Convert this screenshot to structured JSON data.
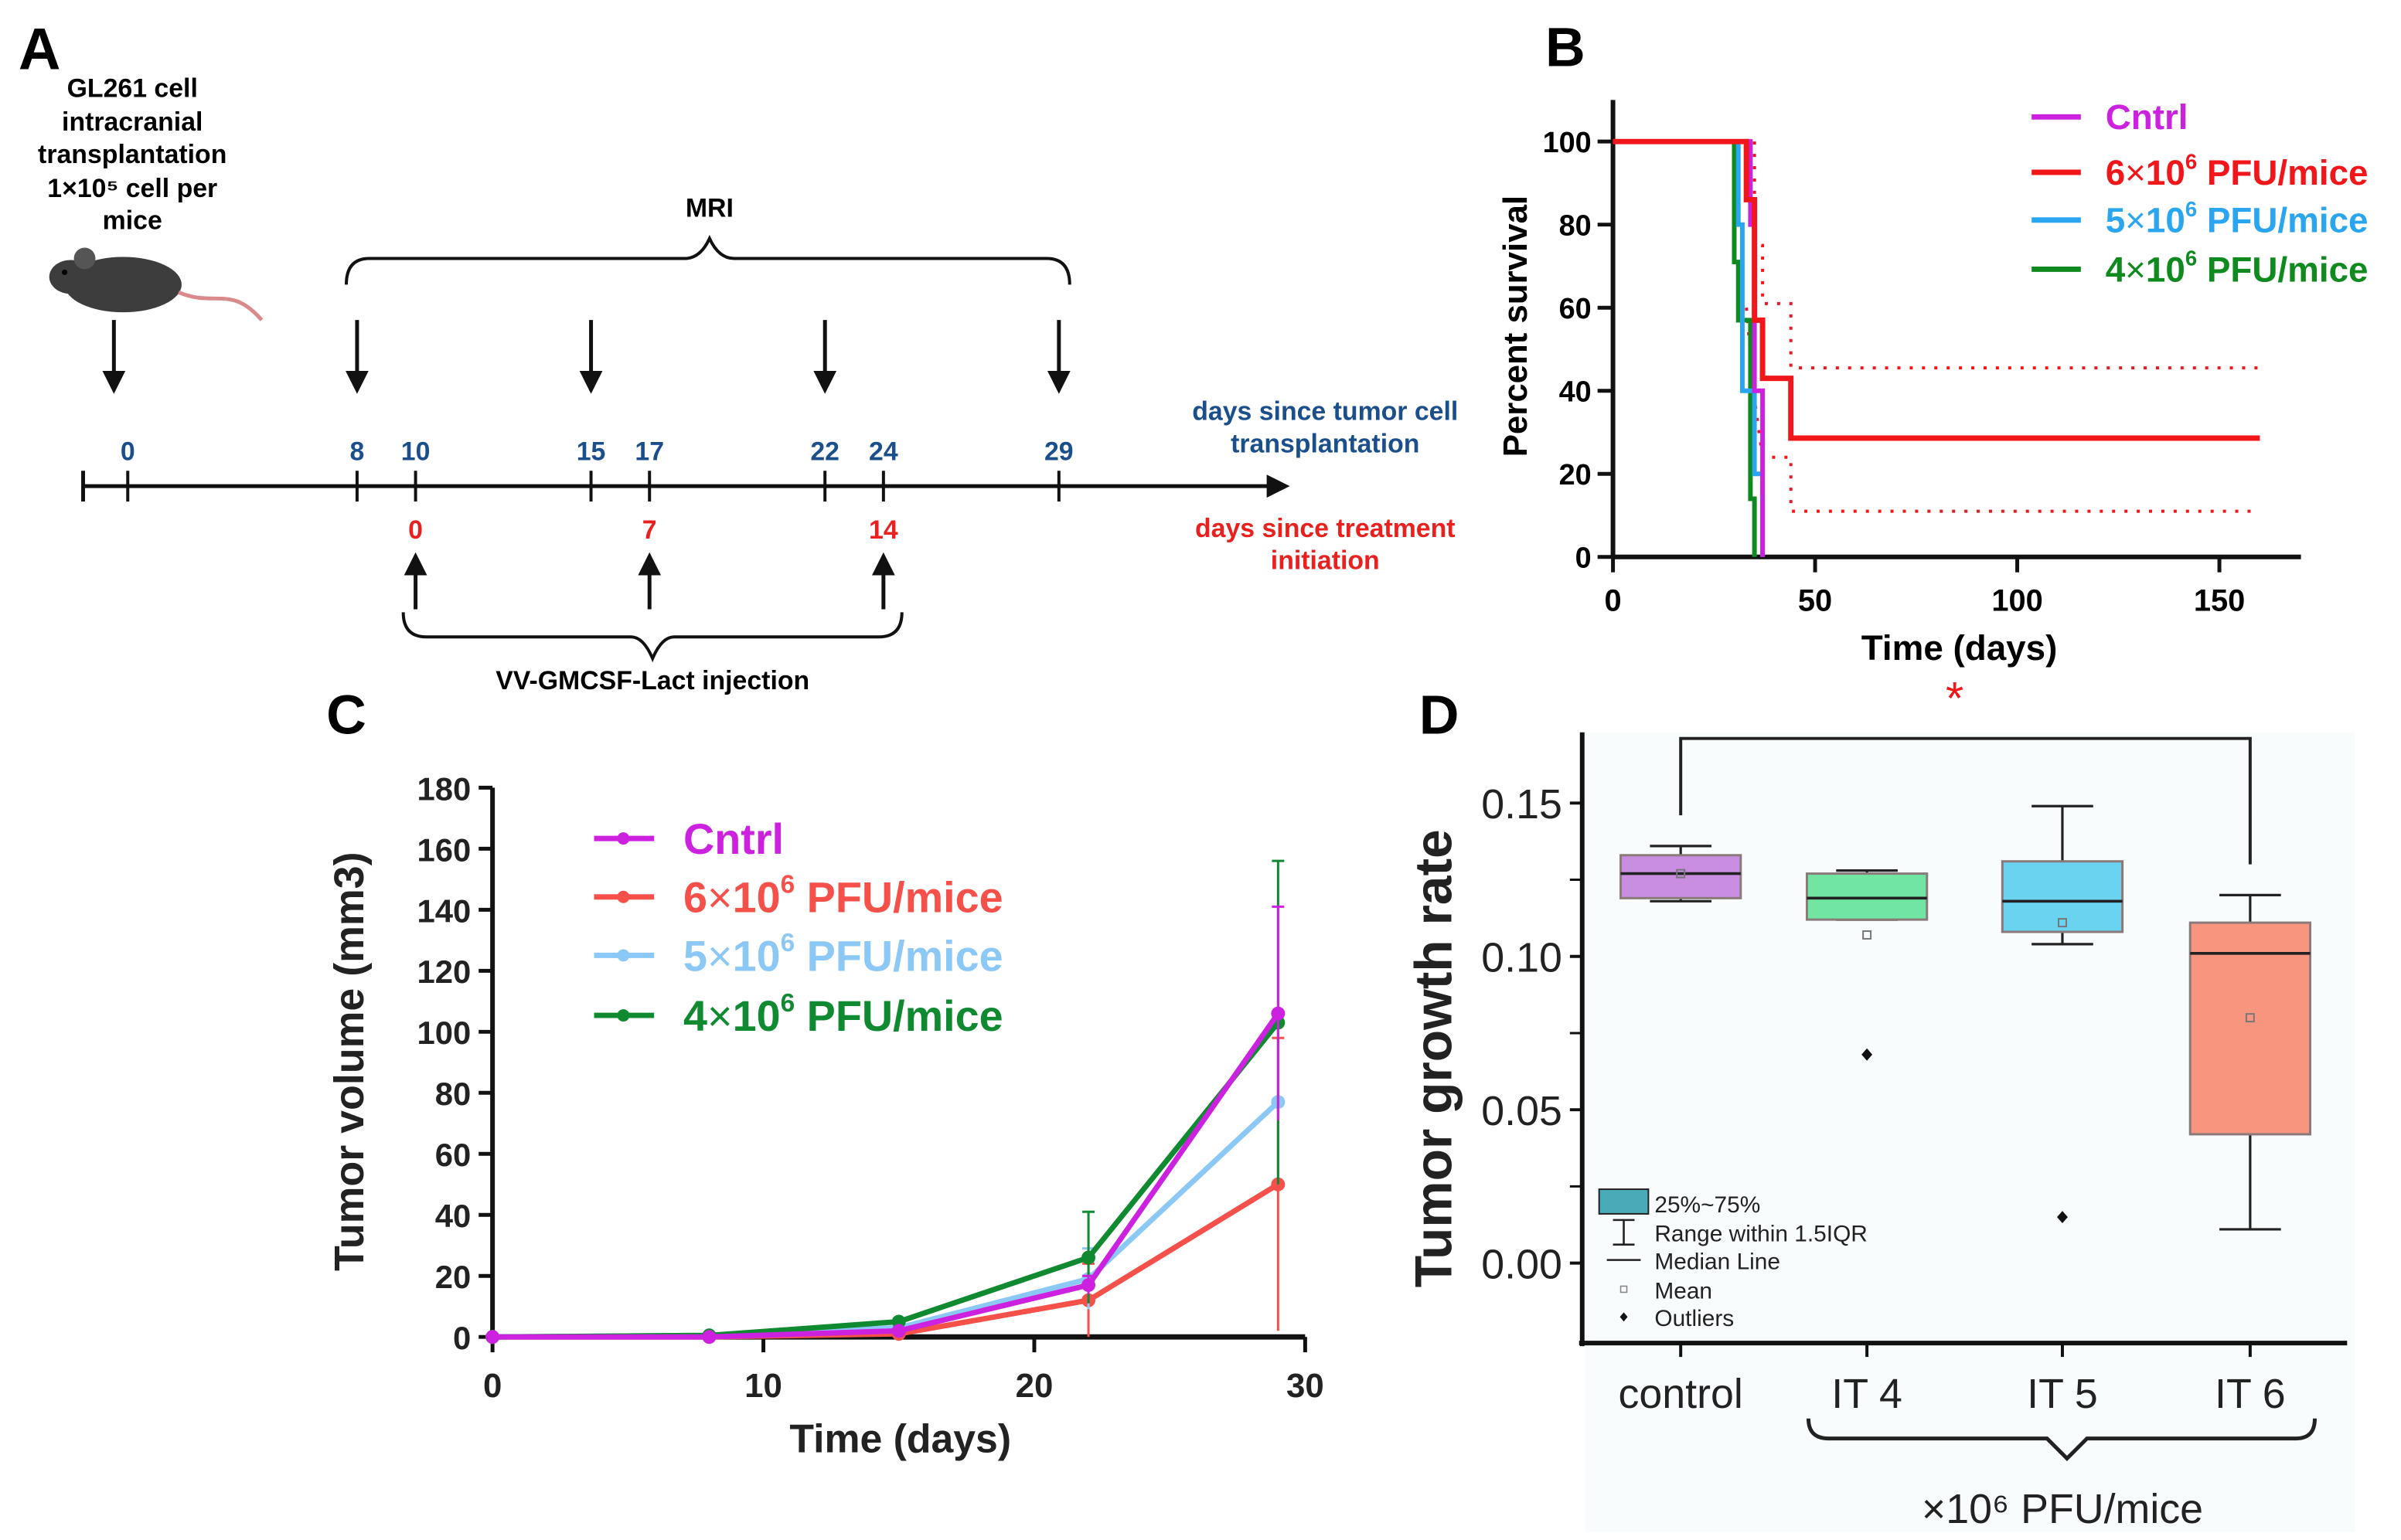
{
  "panels": {
    "a": "A",
    "b": "B",
    "c": "C",
    "d": "D"
  },
  "timeline": {
    "intro_lines": [
      "GL261 cell",
      "intracranial",
      "transplantation",
      "1×10⁵ cell per",
      "mice"
    ],
    "mri_label": "MRI",
    "injection_label": "VV-GMCSF-Lact injection",
    "tumor_days": [
      "0",
      "8",
      "10",
      "15",
      "17",
      "22",
      "24",
      "29"
    ],
    "treatment_days": [
      "0",
      "7",
      "14"
    ],
    "tumor_days_label": [
      "days since tumor cell",
      "transplantation"
    ],
    "treatment_days_label": [
      "days since treatment",
      "initiation"
    ],
    "colors": {
      "tumor": "#1b4f8c",
      "treatment": "#e8201e"
    }
  },
  "chart_data": [
    {
      "id": "B",
      "type": "line",
      "title": "",
      "xlabel": "Time (days)",
      "ylabel": "Percent survival",
      "xlim": [
        0,
        170
      ],
      "ylim": [
        0,
        110
      ],
      "xticks": [
        0,
        50,
        100,
        150
      ],
      "yticks": [
        0,
        20,
        40,
        60,
        80,
        100
      ],
      "annotation": "*",
      "legend_position": "top-right",
      "series": [
        {
          "name": "Cntrl",
          "coef": "",
          "exp": "",
          "unit": "Cntrl",
          "color": "#cc22e0",
          "steps": [
            [
              0,
              100
            ],
            [
              34,
              100
            ],
            [
              34,
              80
            ],
            [
              35,
              80
            ],
            [
              35,
              40
            ],
            [
              37,
              40
            ],
            [
              37,
              0
            ]
          ]
        },
        {
          "name": "6×10^6 PFU/mice",
          "coef": "6",
          "exp": "6",
          "unit": "PFU/mice",
          "color": "#f0161a",
          "steps": [
            [
              0,
              100
            ],
            [
              33,
              100
            ],
            [
              33,
              86
            ],
            [
              35,
              86
            ],
            [
              35,
              57
            ],
            [
              37,
              57
            ],
            [
              37,
              43
            ],
            [
              44,
              43
            ],
            [
              44,
              28.6
            ],
            [
              160,
              28.6
            ]
          ],
          "ci_upper": [
            [
              35,
              100
            ],
            [
              35,
              75
            ],
            [
              37,
              75
            ],
            [
              37,
              61
            ],
            [
              44,
              61
            ],
            [
              44,
              45.5
            ],
            [
              160,
              45.5
            ]
          ],
          "ci_lower": [
            [
              33,
              60
            ],
            [
              35,
              38
            ],
            [
              37,
              24
            ],
            [
              44,
              24
            ],
            [
              44,
              11
            ],
            [
              160,
              11
            ]
          ]
        },
        {
          "name": "5×10^6 PFU/mice",
          "coef": "5",
          "exp": "6",
          "unit": "PFU/mice",
          "color": "#2aa6f0",
          "steps": [
            [
              0,
              100
            ],
            [
              31,
              100
            ],
            [
              31,
              80
            ],
            [
              32,
              80
            ],
            [
              32,
              40
            ],
            [
              35,
              40
            ],
            [
              35,
              20
            ],
            [
              37,
              20
            ],
            [
              37,
              0
            ]
          ]
        },
        {
          "name": "4×10^6 PFU/mice",
          "coef": "4",
          "exp": "6",
          "unit": "PFU/mice",
          "color": "#0f8a1e",
          "steps": [
            [
              0,
              100
            ],
            [
              30,
              100
            ],
            [
              30,
              71
            ],
            [
              31,
              71
            ],
            [
              31,
              57
            ],
            [
              34,
              57
            ],
            [
              34,
              14
            ],
            [
              35,
              14
            ],
            [
              35,
              0
            ]
          ]
        }
      ]
    },
    {
      "id": "C",
      "type": "line",
      "xlabel": "Time (days)",
      "ylabel": "Tumor volume (mm3)",
      "xlim": [
        0,
        30
      ],
      "ylim": [
        0,
        180
      ],
      "xticks": [
        0,
        10,
        20,
        30
      ],
      "yticks": [
        0,
        20,
        40,
        60,
        80,
        100,
        120,
        140,
        160,
        180
      ],
      "legend_position": "top-left",
      "x": [
        0,
        8,
        15,
        22,
        29
      ],
      "series": [
        {
          "name": "Cntrl",
          "coef": "",
          "exp": "",
          "unit": "Cntrl",
          "color": "#cc22e0",
          "values": [
            0,
            0,
            2,
            17,
            106
          ],
          "err": [
            0,
            0,
            1,
            3,
            35
          ]
        },
        {
          "name": "6×10^6 PFU/mice",
          "coef": "6",
          "exp": "6",
          "unit": "PFU/mice",
          "color": "#f5504a",
          "values": [
            0,
            0,
            1,
            12,
            50
          ],
          "err": [
            0,
            0,
            1,
            12,
            48
          ]
        },
        {
          "name": "5×10^6 PFU/mice",
          "coef": "5",
          "exp": "6",
          "unit": "PFU/mice",
          "color": "#8cc8f5",
          "values": [
            0,
            0.5,
            3,
            19,
            77
          ],
          "err": [
            0,
            0,
            1,
            10,
            0
          ]
        },
        {
          "name": "4×10^6 PFU/mice",
          "coef": "4",
          "exp": "6",
          "unit": "PFU/mice",
          "color": "#0f8a30",
          "values": [
            0,
            0.5,
            5,
            26,
            103
          ],
          "err": [
            0,
            0,
            1,
            15,
            53
          ]
        }
      ]
    },
    {
      "id": "D",
      "type": "box",
      "ylabel": "Tumor growth rate",
      "xlabel": "×10⁶ PFU/mice",
      "ylim": [
        -0.025,
        0.175
      ],
      "yticks": [
        "0.00",
        "0.05",
        "0.10",
        "0.15"
      ],
      "categories": [
        "control",
        "IT 4",
        "IT 5",
        "IT 6"
      ],
      "significance": {
        "from": "control",
        "to": "IT 6",
        "label": "*"
      },
      "boxes": [
        {
          "q1": 0.119,
          "q3": 0.133,
          "median": 0.127,
          "mean": 0.127,
          "whisker_low": 0.118,
          "whisker_high": 0.136,
          "outliers": [],
          "color": "#c98ee0"
        },
        {
          "q1": 0.112,
          "q3": 0.127,
          "median": 0.119,
          "mean": 0.107,
          "whisker_low": 0.112,
          "whisker_high": 0.128,
          "outliers": [
            0.068
          ],
          "color": "#70e6a2"
        },
        {
          "q1": 0.108,
          "q3": 0.131,
          "median": 0.118,
          "mean": 0.111,
          "whisker_low": 0.104,
          "whisker_high": 0.149,
          "outliers": [
            0.015
          ],
          "color": "#6ad3f0"
        },
        {
          "q1": 0.042,
          "q3": 0.111,
          "median": 0.101,
          "mean": 0.08,
          "whisker_low": 0.011,
          "whisker_high": 0.12,
          "outliers": [],
          "color": "#f7957e"
        }
      ],
      "legend": [
        "25%~75%",
        "Range within 1.5IQR",
        "Median Line",
        "Mean",
        "Outliers"
      ],
      "legend_color": "#49aab8"
    }
  ]
}
